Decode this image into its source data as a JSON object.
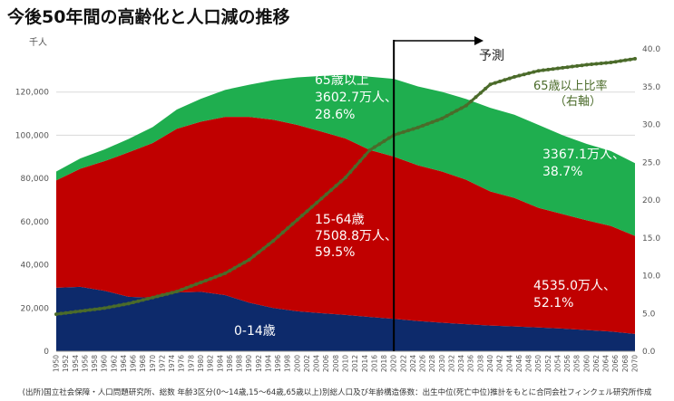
{
  "title": "今後50年間の高齢化と人口減の推移",
  "source_note": "(出所)国立社会保障・人口問題研究所、総数 年齢3区分(0～14歳,15～64歳,65歳以上)別総人口及び年齢構造係数：出生中位(死亡中位)推計をもとに合同会社フィンクェル研究所作成",
  "colors": {
    "young": "#0d2a6b",
    "working": "#c00000",
    "elderly": "#1fae4f",
    "ratio_line": "#4b6b2a",
    "grid": "#d9d9d9",
    "axis_text": "#555555"
  },
  "chart_data": {
    "type": "area",
    "unit_label": "千人",
    "x": [
      1950,
      1955,
      1960,
      1965,
      1970,
      1975,
      1980,
      1985,
      1990,
      1995,
      2000,
      2005,
      2010,
      2015,
      2020,
      2025,
      2030,
      2035,
      2040,
      2045,
      2050,
      2055,
      2060,
      2065,
      2070
    ],
    "x_tick_labels": [
      "1950",
      "1952",
      "1954",
      "1956",
      "1958",
      "1960",
      "1962",
      "1964",
      "1966",
      "1968",
      "1970",
      "1972",
      "1974",
      "1976",
      "1978",
      "1980",
      "1982",
      "1984",
      "1986",
      "1988",
      "1990",
      "1992",
      "1994",
      "1996",
      "1998",
      "2000",
      "2002",
      "2004",
      "2006",
      "2008",
      "2010",
      "2012",
      "2014",
      "2016",
      "2018",
      "2020",
      "2022",
      "2024",
      "2026",
      "2028",
      "2030",
      "2032",
      "2034",
      "2036",
      "2038",
      "2040",
      "2042",
      "2044",
      "2046",
      "2048",
      "2050",
      "2052",
      "2054",
      "2056",
      "2058",
      "2060",
      "2062",
      "2064",
      "2066",
      "2068",
      "2070"
    ],
    "series": [
      {
        "name": "0-14歳",
        "values": [
          29400,
          29800,
          28000,
          25200,
          24800,
          27200,
          27500,
          26000,
          22500,
          20000,
          18500,
          17600,
          16800,
          15900,
          15000,
          14000,
          13200,
          12500,
          11900,
          11500,
          11000,
          10500,
          9800,
          9100,
          8000
        ]
      },
      {
        "name": "15-64歳",
        "values": [
          49700,
          54700,
          60000,
          66900,
          71600,
          75800,
          78800,
          82500,
          86000,
          87200,
          86300,
          84100,
          81700,
          77300,
          75100,
          72100,
          70000,
          66900,
          62100,
          59500,
          55400,
          53000,
          50800,
          48900,
          45400
        ]
      },
      {
        "name": "65歳以上",
        "values": [
          4100,
          4800,
          5400,
          6200,
          7400,
          8900,
          10600,
          12500,
          14900,
          18300,
          22000,
          25800,
          29500,
          33900,
          36000,
          36500,
          36900,
          37400,
          38700,
          38500,
          38400,
          36500,
          35400,
          34700,
          33700
        ]
      }
    ],
    "ratio_series": {
      "name": "65歳以上比率（右軸）",
      "values": [
        4.9,
        5.3,
        5.7,
        6.3,
        7.1,
        7.9,
        9.1,
        10.3,
        12.1,
        14.6,
        17.4,
        20.2,
        23.0,
        26.6,
        28.6,
        29.6,
        30.8,
        32.5,
        35.3,
        36.3,
        37.1,
        37.5,
        37.9,
        38.2,
        38.7
      ]
    },
    "ylim_left": [
      0,
      140000
    ],
    "yticks_left": [
      "0",
      "20,000",
      "40,000",
      "60,000",
      "80,000",
      "100,000",
      "120,000"
    ],
    "ylim_right": [
      0,
      40
    ],
    "yticks_right": [
      "0.0",
      "5.0",
      "10.0",
      "15.0",
      "20.0",
      "25.0",
      "30.0",
      "35.0",
      "40.0"
    ],
    "divider_x": 2020,
    "forecast_label": "予測",
    "annotations": {
      "elderly_2020": [
        "65歳以上",
        "3602.7万人、",
        "28.6%"
      ],
      "working_2020": [
        "15-64歳",
        "7508.8万人、",
        "59.5%"
      ],
      "young": "0-14歳",
      "elderly_2070": [
        "3367.1万人、",
        "38.7%"
      ],
      "working_2070": [
        "4535.0万人、",
        "52.1%"
      ],
      "ratio_label": [
        "65歳以上比率",
        "（右軸）"
      ]
    }
  }
}
